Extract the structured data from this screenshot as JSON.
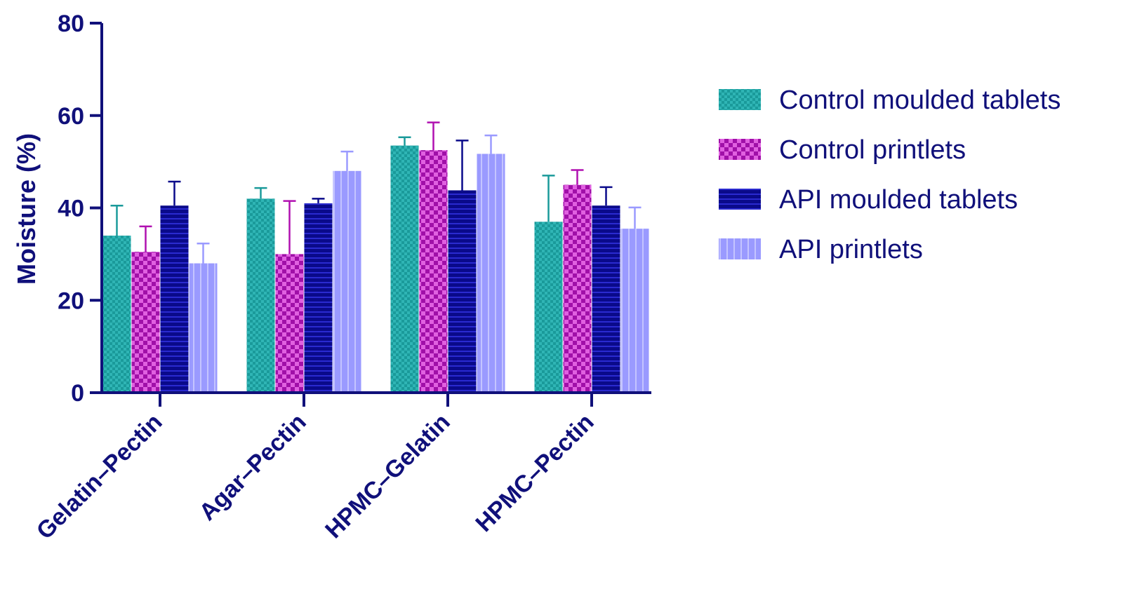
{
  "chart_data": {
    "type": "bar",
    "title": "",
    "xlabel": "",
    "ylabel": "Moisture (%)",
    "ylim": [
      0,
      80
    ],
    "yticks": [
      0,
      20,
      40,
      60,
      80
    ],
    "grid": false,
    "legend_position": "right",
    "categories": [
      "Gelatin–Pectin",
      "Agar–Pectin",
      "HPMC–Gelatin",
      "HPMC–Pectin"
    ],
    "series": [
      {
        "name": "Control moulded tablets",
        "values": [
          34.0,
          42.0,
          53.5,
          37.0
        ],
        "errors": [
          6.5,
          2.3,
          1.8,
          10.0
        ],
        "color": "#1a9a9a",
        "pattern": "fine-check"
      },
      {
        "name": "Control printlets",
        "values": [
          30.5,
          30.0,
          52.5,
          45.0
        ],
        "errors": [
          5.5,
          11.5,
          6.0,
          3.2
        ],
        "color": "#b010b0",
        "pattern": "checkerboard"
      },
      {
        "name": "API moulded tablets",
        "values": [
          40.5,
          41.0,
          43.8,
          40.5
        ],
        "errors": [
          5.2,
          1.0,
          10.8,
          4.0
        ],
        "color": "#0a0a8a",
        "pattern": "horizontal-lines"
      },
      {
        "name": "API printlets",
        "values": [
          28.0,
          48.0,
          51.7,
          35.5
        ],
        "errors": [
          4.3,
          4.2,
          4.0,
          4.6
        ],
        "color": "#9a9aff",
        "pattern": "vertical-lines"
      }
    ],
    "colors": {
      "axis": "#10107a",
      "text": "#10107a"
    }
  }
}
